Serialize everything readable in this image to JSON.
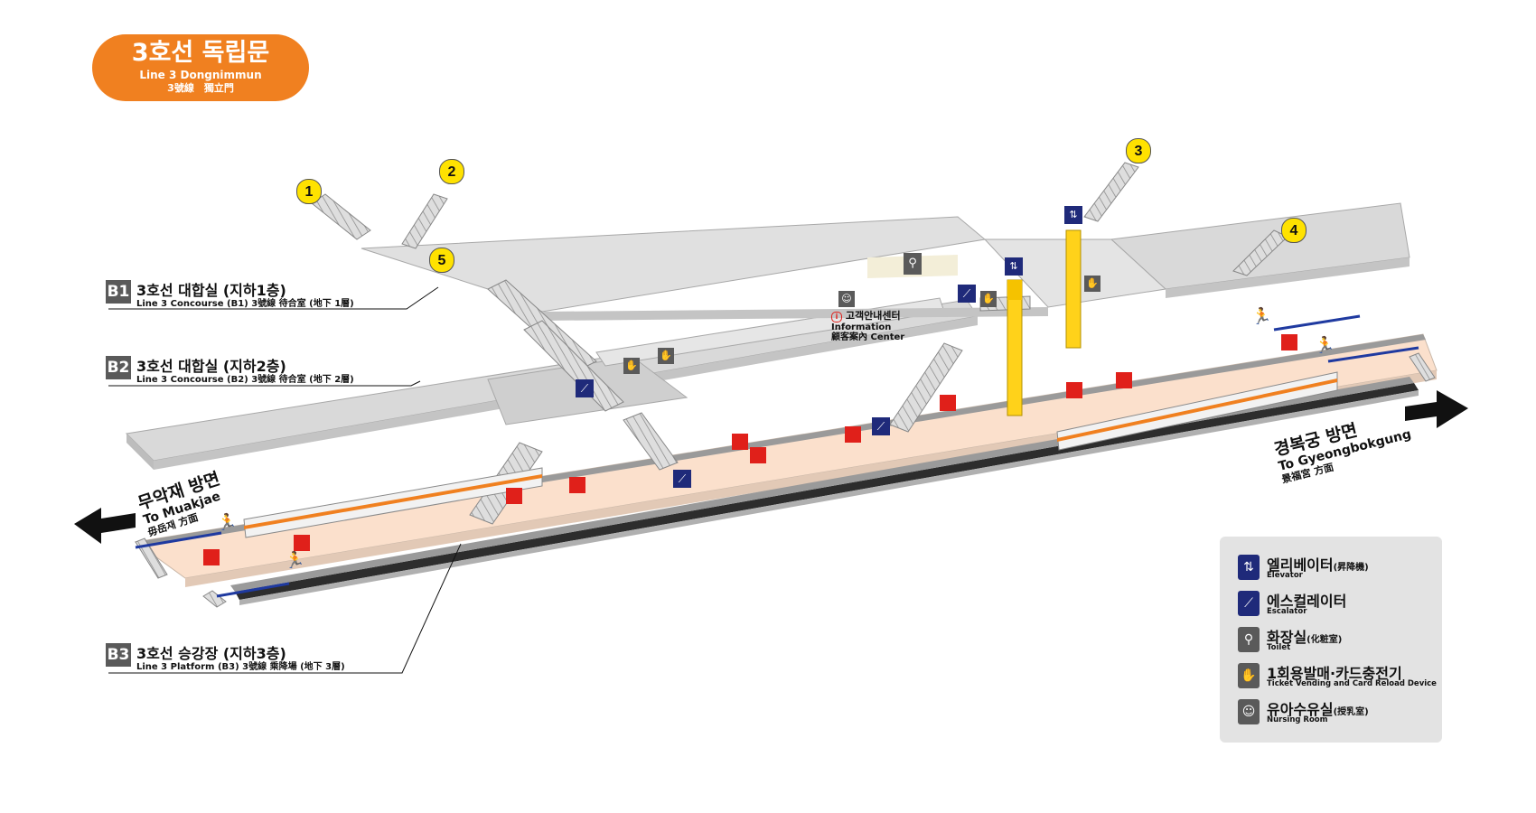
{
  "station": {
    "title_ko": "3호선 독립문",
    "title_en": "Line 3 Dongnimmun",
    "title_hanja": "3號線　獨立門",
    "brand_color": "#f08020"
  },
  "floors": [
    {
      "code": "B1",
      "name_ko": "3호선 대합실 (지하1층)",
      "name_en": "Line 3 Concourse (B1) 3號線 待合室 (地下 1層)"
    },
    {
      "code": "B2",
      "name_ko": "3호선 대합실 (지하2층)",
      "name_en": "Line 3 Concourse (B2) 3號線 待合室 (地下 2層)"
    },
    {
      "code": "B3",
      "name_ko": "3호선 승강장 (지하3층)",
      "name_en": "Line 3 Platform (B3) 3號線 乘降場 (地下 3層)"
    }
  ],
  "exits": [
    "1",
    "2",
    "3",
    "4",
    "5"
  ],
  "info_center": {
    "ko": "고객안내센터",
    "en": "Information",
    "mixed": "顧客案內 Center"
  },
  "directions": {
    "left": {
      "ko": "무악재 방면",
      "en": "To Muakjae",
      "hanja": "毋岳재 方面"
    },
    "right": {
      "ko": "경복궁 방면",
      "en": "To Gyeongbokgung",
      "hanja": "景福宮 方面"
    }
  },
  "legend": [
    {
      "icon": "elevator-icon",
      "ko": "엘리베이터",
      "ko_sub": "(昇降機)",
      "en": "Elevator",
      "color": "#1f2a7a"
    },
    {
      "icon": "escalator-icon",
      "ko": "에스컬레이터",
      "ko_sub": "",
      "en": "Escalator",
      "color": "#1f2a7a"
    },
    {
      "icon": "toilet-icon",
      "ko": "화장실",
      "ko_sub": "(化粧室)",
      "en": "Toilet",
      "color": "#5a5a5a"
    },
    {
      "icon": "ticket-machine-icon",
      "ko": "1회용발매·카드충전기",
      "ko_sub": "",
      "en": "Ticket Vending and Card Reload Device",
      "color": "#5a5a5a"
    },
    {
      "icon": "nursing-room-icon",
      "ko": "유아수유실",
      "ko_sub": "(授乳室)",
      "en": "Nursing Room",
      "color": "#5a5a5a"
    }
  ],
  "colors": {
    "platform": "#fbe0cc",
    "concourse": "#dcdcdc",
    "elevator_shaft": "#ffd21a",
    "emergency": "#e0201a",
    "train_stripe": "#f08020"
  }
}
